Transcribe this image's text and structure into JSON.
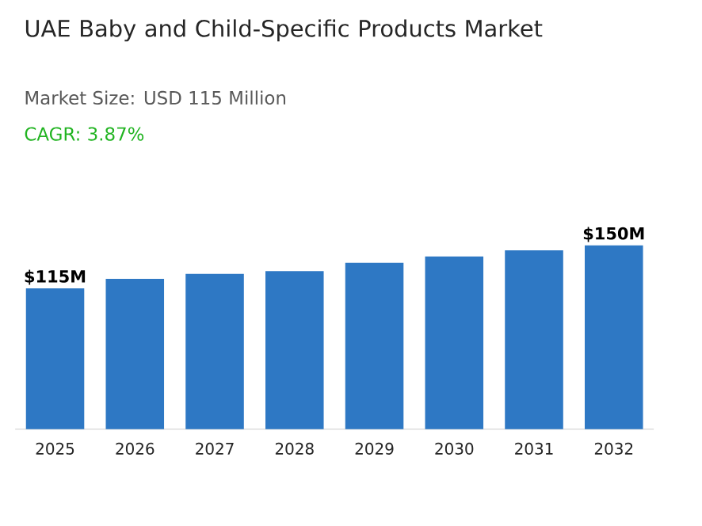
{
  "chart_data": {
    "type": "bar",
    "title": "UAE Baby and Child-Specific Products Market",
    "subtitle": "Market Size: USD 115 Million",
    "annotations": [
      "CAGR: 3.87%"
    ],
    "categories": [
      "2025",
      "2026",
      "2027",
      "2028",
      "2029",
      "2030",
      "2031",
      "2032"
    ],
    "values": [
      115,
      122.8,
      126.7,
      129,
      135.8,
      141,
      146,
      150
    ],
    "value_labels": [
      "$115M",
      null,
      null,
      null,
      null,
      null,
      null,
      "$150M"
    ],
    "color": "#2e78c4"
  }
}
